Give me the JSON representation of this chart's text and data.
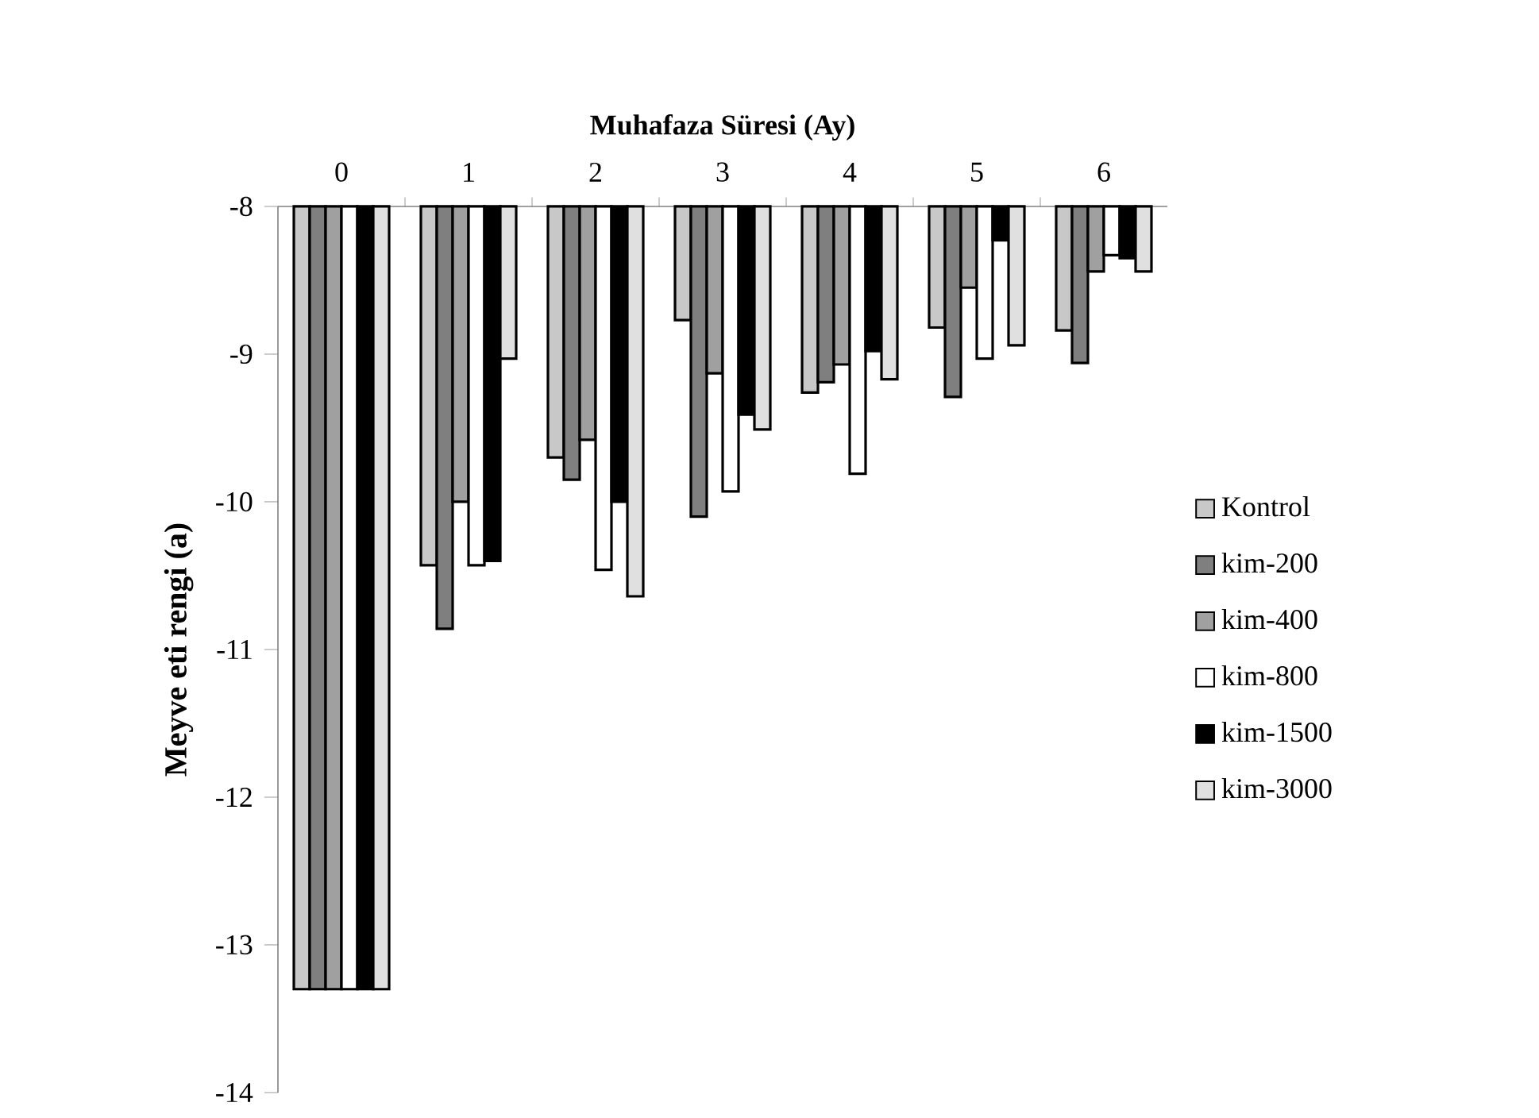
{
  "chart_data": {
    "type": "bar",
    "xlabel": "Muhafaza Süresi (Ay)",
    "ylabel": "Meyve eti rengi (a)",
    "categories": [
      "0",
      "1",
      "2",
      "3",
      "4",
      "5",
      "6"
    ],
    "series": [
      {
        "name": "Kontrol",
        "color": "#c8c8c8",
        "values": [
          -13.3,
          -10.43,
          -9.7,
          -8.77,
          -9.26,
          -8.82,
          -8.84
        ]
      },
      {
        "name": "kim-200",
        "color": "#7f7f7f",
        "values": [
          -13.3,
          -10.86,
          -9.85,
          -10.1,
          -9.19,
          -9.29,
          -9.06
        ]
      },
      {
        "name": "kim-400",
        "color": "#a0a0a0",
        "values": [
          -13.3,
          -10.0,
          -9.58,
          -9.13,
          -9.07,
          -8.55,
          -8.44
        ]
      },
      {
        "name": "kim-800",
        "color": "#ffffff",
        "values": [
          -13.3,
          -10.43,
          -10.46,
          -9.93,
          -9.81,
          -9.03,
          -8.33
        ]
      },
      {
        "name": "kim-1500",
        "color": "#000000",
        "values": [
          -13.3,
          -10.4,
          -10.0,
          -9.41,
          -8.98,
          -8.23,
          -8.35
        ]
      },
      {
        "name": "kim-3000",
        "color": "#e0e0e0",
        "values": [
          -13.3,
          -9.03,
          -10.64,
          -9.51,
          -9.17,
          -8.94,
          -8.44
        ]
      }
    ],
    "ylim": [
      -14,
      -8
    ],
    "yticks": [
      -14,
      -13,
      -12,
      -11,
      -10,
      -9,
      -8
    ],
    "grid": false,
    "legend": "right"
  }
}
